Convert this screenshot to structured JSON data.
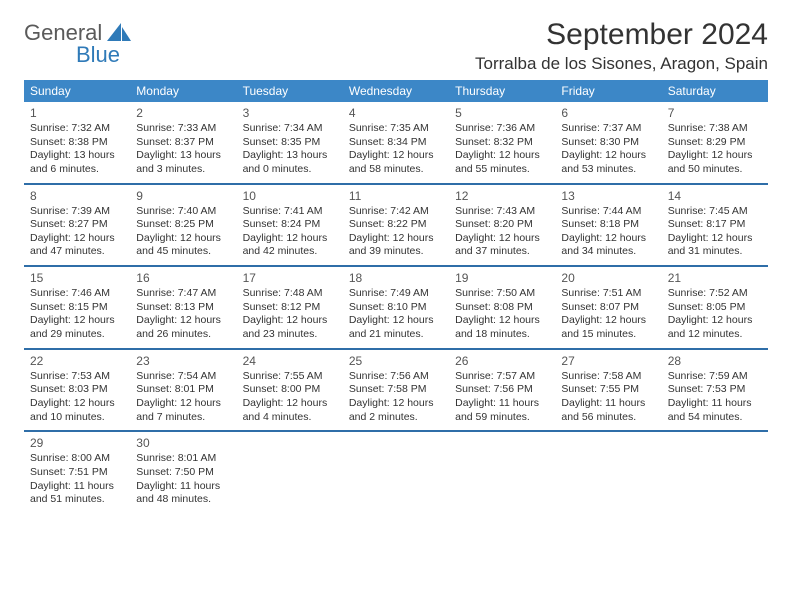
{
  "logo": {
    "general": "General",
    "blue": "Blue"
  },
  "title": "September 2024",
  "location": "Torralba de los Sisones, Aragon, Spain",
  "colors": {
    "header_bg": "#3c87c7",
    "header_text": "#ffffff",
    "week_divider": "#2f6ea8",
    "logo_blue": "#2f7ab8",
    "logo_gray": "#5a5a5a",
    "body_text": "#333333",
    "background": "#ffffff"
  },
  "dow": [
    "Sunday",
    "Monday",
    "Tuesday",
    "Wednesday",
    "Thursday",
    "Friday",
    "Saturday"
  ],
  "weeks": [
    [
      {
        "n": "1",
        "sr": "7:32 AM",
        "ss": "8:38 PM",
        "dl": "13 hours and 6 minutes."
      },
      {
        "n": "2",
        "sr": "7:33 AM",
        "ss": "8:37 PM",
        "dl": "13 hours and 3 minutes."
      },
      {
        "n": "3",
        "sr": "7:34 AM",
        "ss": "8:35 PM",
        "dl": "13 hours and 0 minutes."
      },
      {
        "n": "4",
        "sr": "7:35 AM",
        "ss": "8:34 PM",
        "dl": "12 hours and 58 minutes."
      },
      {
        "n": "5",
        "sr": "7:36 AM",
        "ss": "8:32 PM",
        "dl": "12 hours and 55 minutes."
      },
      {
        "n": "6",
        "sr": "7:37 AM",
        "ss": "8:30 PM",
        "dl": "12 hours and 53 minutes."
      },
      {
        "n": "7",
        "sr": "7:38 AM",
        "ss": "8:29 PM",
        "dl": "12 hours and 50 minutes."
      }
    ],
    [
      {
        "n": "8",
        "sr": "7:39 AM",
        "ss": "8:27 PM",
        "dl": "12 hours and 47 minutes."
      },
      {
        "n": "9",
        "sr": "7:40 AM",
        "ss": "8:25 PM",
        "dl": "12 hours and 45 minutes."
      },
      {
        "n": "10",
        "sr": "7:41 AM",
        "ss": "8:24 PM",
        "dl": "12 hours and 42 minutes."
      },
      {
        "n": "11",
        "sr": "7:42 AM",
        "ss": "8:22 PM",
        "dl": "12 hours and 39 minutes."
      },
      {
        "n": "12",
        "sr": "7:43 AM",
        "ss": "8:20 PM",
        "dl": "12 hours and 37 minutes."
      },
      {
        "n": "13",
        "sr": "7:44 AM",
        "ss": "8:18 PM",
        "dl": "12 hours and 34 minutes."
      },
      {
        "n": "14",
        "sr": "7:45 AM",
        "ss": "8:17 PM",
        "dl": "12 hours and 31 minutes."
      }
    ],
    [
      {
        "n": "15",
        "sr": "7:46 AM",
        "ss": "8:15 PM",
        "dl": "12 hours and 29 minutes."
      },
      {
        "n": "16",
        "sr": "7:47 AM",
        "ss": "8:13 PM",
        "dl": "12 hours and 26 minutes."
      },
      {
        "n": "17",
        "sr": "7:48 AM",
        "ss": "8:12 PM",
        "dl": "12 hours and 23 minutes."
      },
      {
        "n": "18",
        "sr": "7:49 AM",
        "ss": "8:10 PM",
        "dl": "12 hours and 21 minutes."
      },
      {
        "n": "19",
        "sr": "7:50 AM",
        "ss": "8:08 PM",
        "dl": "12 hours and 18 minutes."
      },
      {
        "n": "20",
        "sr": "7:51 AM",
        "ss": "8:07 PM",
        "dl": "12 hours and 15 minutes."
      },
      {
        "n": "21",
        "sr": "7:52 AM",
        "ss": "8:05 PM",
        "dl": "12 hours and 12 minutes."
      }
    ],
    [
      {
        "n": "22",
        "sr": "7:53 AM",
        "ss": "8:03 PM",
        "dl": "12 hours and 10 minutes."
      },
      {
        "n": "23",
        "sr": "7:54 AM",
        "ss": "8:01 PM",
        "dl": "12 hours and 7 minutes."
      },
      {
        "n": "24",
        "sr": "7:55 AM",
        "ss": "8:00 PM",
        "dl": "12 hours and 4 minutes."
      },
      {
        "n": "25",
        "sr": "7:56 AM",
        "ss": "7:58 PM",
        "dl": "12 hours and 2 minutes."
      },
      {
        "n": "26",
        "sr": "7:57 AM",
        "ss": "7:56 PM",
        "dl": "11 hours and 59 minutes."
      },
      {
        "n": "27",
        "sr": "7:58 AM",
        "ss": "7:55 PM",
        "dl": "11 hours and 56 minutes."
      },
      {
        "n": "28",
        "sr": "7:59 AM",
        "ss": "7:53 PM",
        "dl": "11 hours and 54 minutes."
      }
    ],
    [
      {
        "n": "29",
        "sr": "8:00 AM",
        "ss": "7:51 PM",
        "dl": "11 hours and 51 minutes."
      },
      {
        "n": "30",
        "sr": "8:01 AM",
        "ss": "7:50 PM",
        "dl": "11 hours and 48 minutes."
      },
      null,
      null,
      null,
      null,
      null
    ]
  ],
  "labels": {
    "sunrise": "Sunrise:",
    "sunset": "Sunset:",
    "daylight": "Daylight:"
  }
}
